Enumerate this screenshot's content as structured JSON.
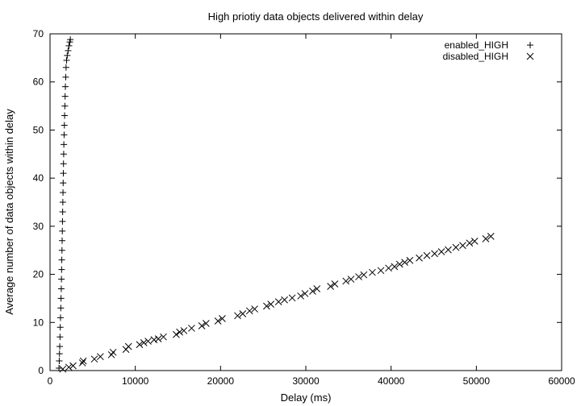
{
  "chart_data": {
    "type": "scatter",
    "title": "High priotiy data objects delivered within delay",
    "xlabel": "Delay (ms)",
    "ylabel": "Average number of data objects within delay",
    "xlim": [
      0,
      60000
    ],
    "ylim": [
      0,
      70
    ],
    "x_ticks": [
      0,
      10000,
      20000,
      30000,
      40000,
      50000,
      60000
    ],
    "y_ticks": [
      0,
      10,
      20,
      30,
      40,
      50,
      60,
      70
    ],
    "grid": false,
    "legend_position": "top-right",
    "series": [
      {
        "name": "enabled_HIGH",
        "marker": "plus",
        "color": "#000000",
        "points": [
          [
            1050,
            0.5
          ],
          [
            1080,
            2
          ],
          [
            1110,
            3.5
          ],
          [
            1140,
            5
          ],
          [
            1170,
            7
          ],
          [
            1200,
            9
          ],
          [
            1230,
            11
          ],
          [
            1260,
            13
          ],
          [
            1290,
            15
          ],
          [
            1320,
            17
          ],
          [
            1340,
            19
          ],
          [
            1360,
            21
          ],
          [
            1380,
            23
          ],
          [
            1400,
            25
          ],
          [
            1420,
            27
          ],
          [
            1440,
            29
          ],
          [
            1460,
            31
          ],
          [
            1480,
            33
          ],
          [
            1500,
            35
          ],
          [
            1520,
            37
          ],
          [
            1540,
            39
          ],
          [
            1560,
            41
          ],
          [
            1580,
            43
          ],
          [
            1600,
            45
          ],
          [
            1620,
            47
          ],
          [
            1650,
            49
          ],
          [
            1680,
            51
          ],
          [
            1710,
            53
          ],
          [
            1740,
            55
          ],
          [
            1770,
            57
          ],
          [
            1800,
            59
          ],
          [
            1840,
            61
          ],
          [
            1880,
            63
          ],
          [
            1940,
            64.5
          ],
          [
            2020,
            65.5
          ],
          [
            2120,
            66.5
          ],
          [
            2220,
            67.5
          ],
          [
            2320,
            68.3
          ],
          [
            2380,
            68.8
          ]
        ]
      },
      {
        "name": "disabled_HIGH",
        "marker": "cross",
        "color": "#000000",
        "points": [
          [
            1500,
            0.3
          ],
          [
            2200,
            0.7
          ],
          [
            2700,
            1
          ],
          [
            3800,
            1.6
          ],
          [
            3900,
            2
          ],
          [
            5200,
            2.4
          ],
          [
            5900,
            2.9
          ],
          [
            7200,
            3.3
          ],
          [
            7400,
            3.8
          ],
          [
            8900,
            4.4
          ],
          [
            9200,
            5
          ],
          [
            10500,
            5.4
          ],
          [
            11000,
            5.8
          ],
          [
            11500,
            6.1
          ],
          [
            12200,
            6.4
          ],
          [
            12700,
            6.6
          ],
          [
            13300,
            7
          ],
          [
            14800,
            7.5
          ],
          [
            15200,
            8
          ],
          [
            15700,
            8.3
          ],
          [
            16600,
            8.8
          ],
          [
            17800,
            9.3
          ],
          [
            18300,
            9.8
          ],
          [
            19700,
            10.3
          ],
          [
            20200,
            10.8
          ],
          [
            22000,
            11.4
          ],
          [
            22600,
            11.8
          ],
          [
            23400,
            12.4
          ],
          [
            24000,
            12.8
          ],
          [
            25400,
            13.4
          ],
          [
            25900,
            13.8
          ],
          [
            26800,
            14.3
          ],
          [
            27500,
            14.7
          ],
          [
            28400,
            15.1
          ],
          [
            29400,
            15.5
          ],
          [
            29900,
            16
          ],
          [
            30800,
            16.5
          ],
          [
            31300,
            17
          ],
          [
            32900,
            17.5
          ],
          [
            33400,
            18
          ],
          [
            34700,
            18.6
          ],
          [
            35300,
            19
          ],
          [
            36200,
            19.5
          ],
          [
            36800,
            19.9
          ],
          [
            37800,
            20.4
          ],
          [
            38800,
            20.8
          ],
          [
            39700,
            21.3
          ],
          [
            40400,
            21.6
          ],
          [
            41000,
            22.1
          ],
          [
            41600,
            22.5
          ],
          [
            42200,
            22.9
          ],
          [
            43300,
            23.4
          ],
          [
            44200,
            23.9
          ],
          [
            45100,
            24.3
          ],
          [
            45900,
            24.7
          ],
          [
            46700,
            25.1
          ],
          [
            47600,
            25.6
          ],
          [
            48400,
            26
          ],
          [
            49200,
            26.5
          ],
          [
            49800,
            26.9
          ],
          [
            51100,
            27.4
          ],
          [
            51700,
            27.9
          ]
        ]
      }
    ]
  }
}
